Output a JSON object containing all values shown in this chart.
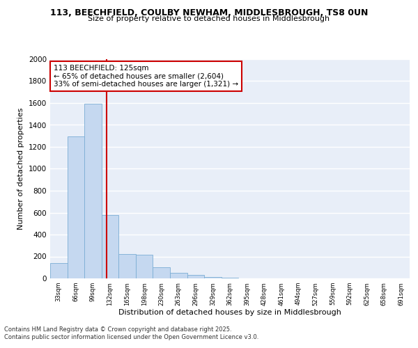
{
  "title_line1": "113, BEECHFIELD, COULBY NEWHAM, MIDDLESBROUGH, TS8 0UN",
  "title_line2": "Size of property relative to detached houses in Middlesbrough",
  "xlabel": "Distribution of detached houses by size in Middlesbrough",
  "ylabel": "Number of detached properties",
  "categories": [
    "33sqm",
    "66sqm",
    "99sqm",
    "132sqm",
    "165sqm",
    "198sqm",
    "230sqm",
    "263sqm",
    "296sqm",
    "329sqm",
    "362sqm",
    "395sqm",
    "428sqm",
    "461sqm",
    "494sqm",
    "527sqm",
    "559sqm",
    "592sqm",
    "625sqm",
    "658sqm",
    "691sqm"
  ],
  "values": [
    140,
    1295,
    1595,
    580,
    220,
    215,
    100,
    52,
    32,
    10,
    5,
    3,
    2,
    2,
    1,
    1,
    1,
    1,
    1,
    1,
    1
  ],
  "bar_color": "#C5D8F0",
  "bar_edge_color": "#7BADD4",
  "vline_color": "#CC0000",
  "annotation_title": "113 BEECHFIELD: 125sqm",
  "annotation_line2": "← 65% of detached houses are smaller (2,604)",
  "annotation_line3": "33% of semi-detached houses are larger (1,321) →",
  "annotation_box_color": "#CC0000",
  "footer_line1": "Contains HM Land Registry data © Crown copyright and database right 2025.",
  "footer_line2": "Contains public sector information licensed under the Open Government Licence v3.0.",
  "ylim": [
    0,
    2000
  ],
  "yticks": [
    0,
    200,
    400,
    600,
    800,
    1000,
    1200,
    1400,
    1600,
    1800,
    2000
  ],
  "background_color": "#E8EEF8",
  "grid_color": "#FFFFFF",
  "fig_bg_color": "#FFFFFF",
  "figsize": [
    6.0,
    5.0
  ],
  "dpi": 100
}
